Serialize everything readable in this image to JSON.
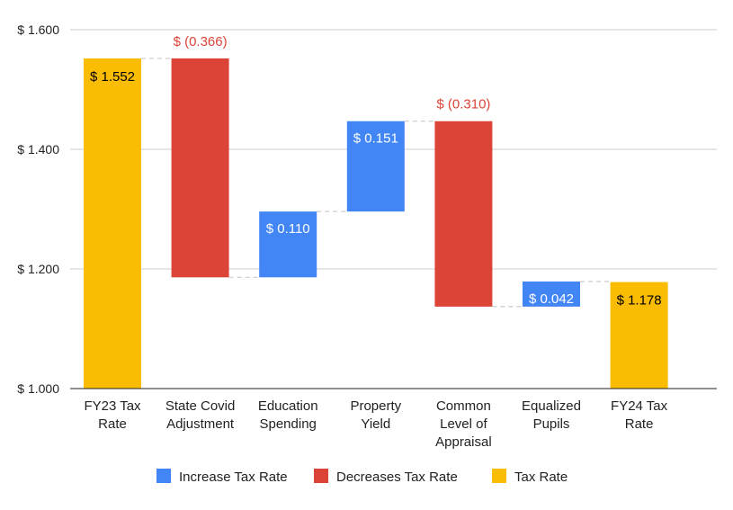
{
  "chart_data": {
    "type": "waterfall",
    "categories": [
      [
        "FY23 Tax",
        "Rate"
      ],
      [
        "State Covid",
        "Adjustment"
      ],
      [
        "Education",
        "Spending"
      ],
      [
        "Property",
        "Yield"
      ],
      [
        "Common",
        "Level of",
        "Appraisal"
      ],
      [
        "Equalized",
        "Pupils"
      ],
      [
        "FY24 Tax",
        "Rate"
      ]
    ],
    "steps": [
      {
        "kind": "total",
        "value": 1.552,
        "label": "$ 1.552"
      },
      {
        "kind": "decrease",
        "value": -0.366,
        "label": "$ (0.366)"
      },
      {
        "kind": "increase",
        "value": 0.11,
        "label": "$ 0.110"
      },
      {
        "kind": "increase",
        "value": 0.151,
        "label": "$ 0.151"
      },
      {
        "kind": "decrease",
        "value": -0.31,
        "label": "$ (0.310)"
      },
      {
        "kind": "increase",
        "value": 0.042,
        "label": "$ 0.042"
      },
      {
        "kind": "total",
        "value": 1.178,
        "label": "$ 1.178"
      }
    ],
    "ylim": [
      1.0,
      1.6
    ],
    "yticks": [
      {
        "value": 1.0,
        "label": "$ 1.000"
      },
      {
        "value": 1.2,
        "label": "$ 1.200"
      },
      {
        "value": 1.4,
        "label": "$ 1.400"
      },
      {
        "value": 1.6,
        "label": "$ 1.600"
      }
    ],
    "grid": true,
    "legend_position": "bottom",
    "legend": [
      {
        "kind": "increase",
        "label": "Increase Tax Rate"
      },
      {
        "kind": "decrease",
        "label": "Decreases Tax Rate"
      },
      {
        "kind": "total",
        "label": "Tax Rate"
      }
    ],
    "colors": {
      "increase": "#4285f4",
      "decrease": "#db4437",
      "total": "#fbbc04",
      "increase_label": "#ffffff",
      "decrease_label": "#db4437",
      "total_label": "#000000",
      "grid": "#cccccc",
      "axis": "#222222",
      "connector": "#cccccc"
    }
  }
}
